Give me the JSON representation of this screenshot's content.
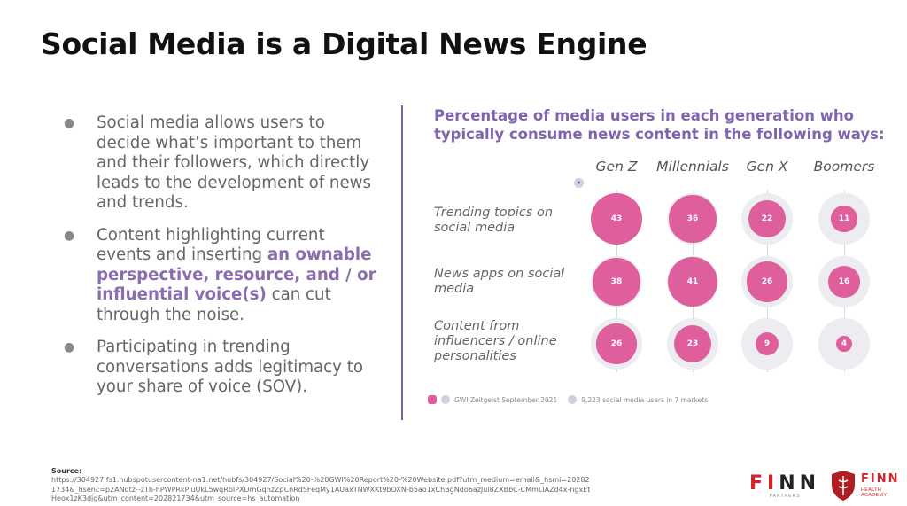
{
  "slide": {
    "title": "Social Media is a Digital News Engine",
    "bullets": [
      {
        "pre": "Social media allows users to decide what’s important to them and their followers, which directly leads to the development of news and trends.",
        "highlight": "",
        "post": ""
      },
      {
        "pre": "Content highlighting current events and inserting ",
        "highlight": "an ownable perspective, resource, and / or influential voice(s)",
        "post": " can cut through the noise."
      },
      {
        "pre": "Participating in trending conversations adds legitimacy to your share of voice (SOV).",
        "highlight": "",
        "post": ""
      }
    ]
  },
  "chart_data": {
    "type": "bubble-matrix",
    "title": "Percentage of media users in each generation who typically consume news content in the following ways:",
    "columns": [
      "Gen Z",
      "Millennials",
      "Gen X",
      "Boomers"
    ],
    "rows": [
      "Trending topics on social media",
      "News apps on social media",
      "Content from influencers / online personalities"
    ],
    "values": [
      [
        43,
        36,
        22,
        11
      ],
      [
        38,
        41,
        26,
        16
      ],
      [
        26,
        23,
        9,
        4
      ]
    ],
    "unit": "%",
    "colors": {
      "bubble": "#df5e9c",
      "track": "#ececf1",
      "title": "#7f65b0"
    },
    "footer": {
      "source_name": "GWI Zeitgeist September 2021",
      "sample": "9,223 social media users in 7 markets"
    }
  },
  "source": {
    "label": "Source:",
    "url": "https://304927.fs1.hubspotusercontent-na1.net/hubfs/304927/Social%20-%20GWI%20Report%20-%20Website.pdf?utm_medium=email&_hsmi=202821734&_hsenc=p2ANqtz--zTh-hPWPRkPiuUkL5wqRbIPXDmGqnzZpCnRdSFeqMy1AUaxTNWXKt9bOXN-b5ao1xChBgNdo6azJui8ZXBbC-CMmLlAZd4x-ngxEtHeox1zK3djg&utm_content=202821734&utm_source=hs_automation"
  },
  "logos": {
    "finn_left": "FI",
    "finn_right": "NN",
    "finn_sub": "PARTNERS",
    "health_word": "FINN",
    "health_sub": "HEALTH ACADEMY"
  }
}
